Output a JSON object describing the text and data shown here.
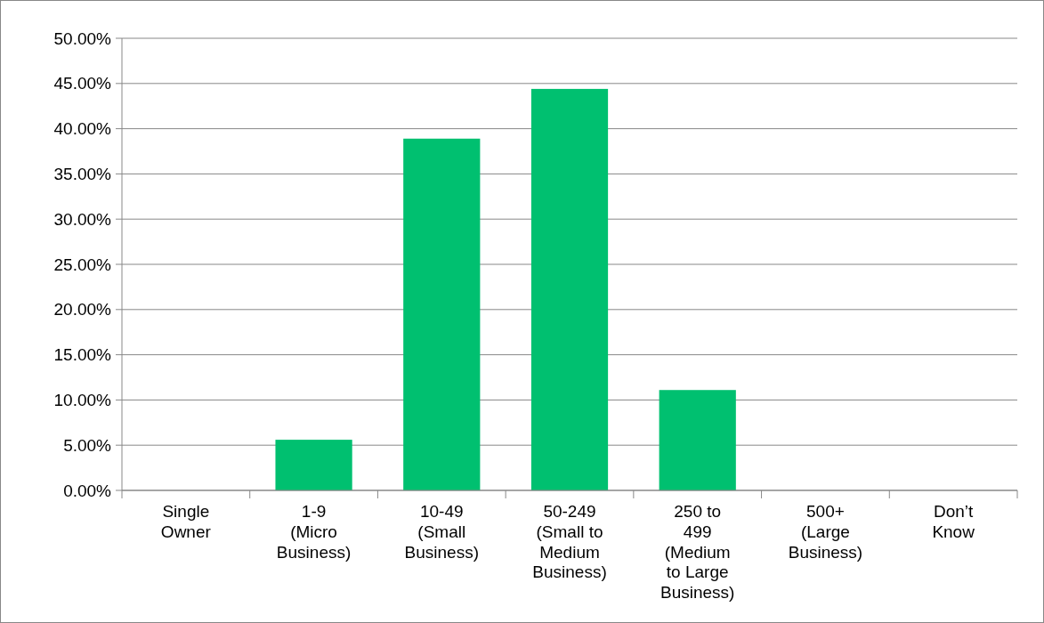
{
  "chart_data": {
    "type": "bar",
    "categories": [
      "Single Owner",
      "1-9 (Micro Business)",
      "10-49 (Small Business)",
      "50-249 (Small to Medium Business)",
      "250 to 499 (Medium to Large Business)",
      "500+ (Large Business)",
      "Don’t Know"
    ],
    "values": [
      0,
      5.6,
      38.9,
      44.4,
      11.1,
      0,
      0
    ],
    "color": "#00c070",
    "ylim": [
      0,
      50
    ],
    "yticks": [
      {
        "value": 0,
        "label": "0.00%"
      },
      {
        "value": 5,
        "label": "5.00%"
      },
      {
        "value": 10,
        "label": "10.00%"
      },
      {
        "value": 15,
        "label": "15.00%"
      },
      {
        "value": 20,
        "label": "20.00%"
      },
      {
        "value": 25,
        "label": "25.00%"
      },
      {
        "value": 30,
        "label": "30.00%"
      },
      {
        "value": 35,
        "label": "35.00%"
      },
      {
        "value": 40,
        "label": "40.00%"
      },
      {
        "value": 45,
        "label": "45.00%"
      },
      {
        "value": 50,
        "label": "50.00%"
      }
    ],
    "grid": "y"
  }
}
